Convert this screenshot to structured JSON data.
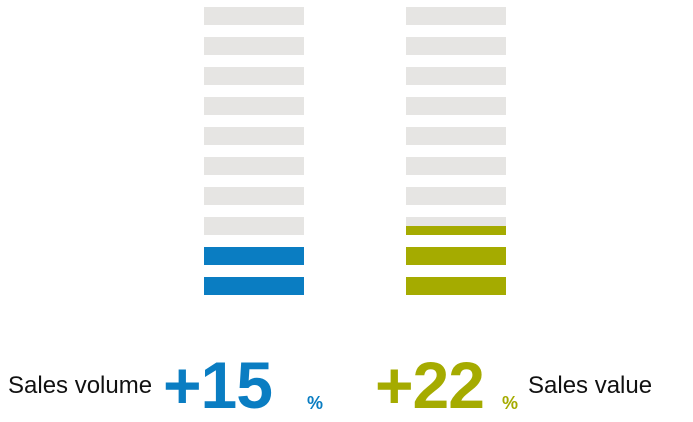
{
  "chart_data": {
    "type": "bar",
    "segments_per_column": 10,
    "track_color": "#e6e5e3",
    "series": [
      {
        "name": "Sales volume",
        "value_label": "+15",
        "unit": "%",
        "filled_segments": 2,
        "color": "#0a7dc2"
      },
      {
        "name": "Sales value",
        "value_label": "+22",
        "unit": "%",
        "filled_segments": 2.5,
        "color": "#a5ab00"
      }
    ]
  }
}
